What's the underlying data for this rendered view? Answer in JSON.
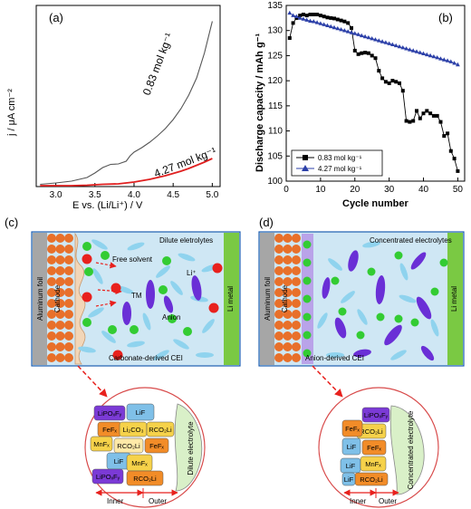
{
  "chart_data": [
    {
      "type": "line",
      "panel": "(a)",
      "xlabel": "E vs. (Li/Li⁺) / V",
      "ylabel": "j / μA cm⁻²",
      "xlim": [
        2.75,
        5.1
      ],
      "ylim": [
        0,
        40
      ],
      "x_ticks": [
        "3.0",
        "3.5",
        "4.0",
        "4.5",
        "5.0"
      ],
      "series": [
        {
          "name": "0.83 mol kg⁻¹",
          "color": "#555555",
          "x": [
            2.8,
            3.0,
            3.2,
            3.4,
            3.5,
            3.6,
            3.7,
            3.8,
            3.9,
            3.95,
            4.0,
            4.1,
            4.2,
            4.3,
            4.4,
            4.5,
            4.6,
            4.7,
            4.8,
            4.9,
            5.0
          ],
          "y": [
            0.5,
            0.8,
            1.2,
            2.0,
            3.0,
            4.2,
            4.9,
            5.0,
            5.6,
            6.8,
            7.6,
            8.6,
            9.8,
            11.2,
            12.8,
            14.8,
            17.2,
            20.2,
            24.0,
            29.5,
            36.5
          ]
        },
        {
          "name": "4.27 mol kg⁻¹",
          "color": "#e02020",
          "x": [
            2.8,
            3.0,
            3.2,
            3.4,
            3.6,
            3.8,
            3.9,
            4.0,
            4.1,
            4.2,
            4.3,
            4.4,
            4.5,
            4.6,
            4.7,
            4.8,
            4.9,
            5.0
          ],
          "y": [
            0.2,
            0.2,
            0.2,
            0.3,
            0.5,
            0.6,
            0.8,
            1.0,
            1.3,
            1.6,
            2.0,
            2.4,
            2.9,
            3.4,
            4.0,
            4.7,
            5.4,
            6.2
          ]
        }
      ]
    },
    {
      "type": "line",
      "panel": "(b)",
      "xlabel": "Cycle number",
      "ylabel": "Discharge capacity / mAh g⁻¹",
      "xlim": [
        0,
        52
      ],
      "ylim": [
        100,
        135
      ],
      "x_ticks": [
        0,
        10,
        20,
        30,
        40,
        50
      ],
      "y_ticks": [
        100,
        105,
        110,
        115,
        120,
        125,
        130,
        135
      ],
      "legend_position": "bottom-left",
      "series": [
        {
          "name": "0.83 mol kg⁻¹",
          "marker": "square",
          "color": "#000000",
          "x": [
            1,
            2,
            3,
            4,
            5,
            6,
            7,
            8,
            9,
            10,
            11,
            12,
            13,
            14,
            15,
            16,
            17,
            18,
            19,
            20,
            21,
            22,
            23,
            24,
            25,
            26,
            27,
            28,
            29,
            30,
            31,
            32,
            33,
            34,
            35,
            36,
            37,
            38,
            39,
            40,
            41,
            42,
            43,
            44,
            45,
            46,
            47,
            48,
            49,
            50
          ],
          "y": [
            128.5,
            131.5,
            132.5,
            133,
            133.2,
            133,
            133.2,
            133.2,
            133.2,
            133,
            132.8,
            132.6,
            132.5,
            132.4,
            132.2,
            132,
            131.8,
            131.5,
            130.5,
            126,
            125.3,
            125.5,
            125.6,
            125.5,
            125,
            124.5,
            122,
            120.5,
            119.8,
            119.5,
            120,
            119.8,
            119.5,
            118,
            112,
            111.8,
            112,
            114,
            112.5,
            113.5,
            114,
            113.5,
            113,
            113,
            111.8,
            109,
            109.5,
            106,
            104.5,
            102
          ]
        },
        {
          "name": "4.27 mol kg⁻¹",
          "marker": "triangle",
          "color": "#2b3fa8",
          "x": [
            1,
            2,
            3,
            4,
            5,
            6,
            7,
            8,
            9,
            10,
            11,
            12,
            13,
            14,
            15,
            16,
            17,
            18,
            19,
            20,
            21,
            22,
            23,
            24,
            25,
            26,
            27,
            28,
            29,
            30,
            31,
            32,
            33,
            34,
            35,
            36,
            37,
            38,
            39,
            40,
            41,
            42,
            43,
            44,
            45,
            46,
            47,
            48,
            49,
            50
          ],
          "y": [
            133.5,
            133,
            132.8,
            132.5,
            132.3,
            132.1,
            131.9,
            131.8,
            131.6,
            131.4,
            131.2,
            131,
            130.8,
            130.6,
            130.4,
            130.2,
            130,
            129.8,
            129.6,
            129.4,
            129.2,
            129,
            128.8,
            128.6,
            128.4,
            128.2,
            128,
            127.8,
            127.6,
            127.4,
            127.2,
            127,
            126.8,
            126.6,
            126.4,
            126.2,
            126,
            125.8,
            125.6,
            125.4,
            125.2,
            125,
            124.8,
            124.6,
            124.4,
            124.2,
            124,
            123.8,
            123.5,
            123.2
          ]
        }
      ]
    }
  ],
  "panels": {
    "a": "(a)",
    "b": "(b)",
    "c": "(c)",
    "d": "(d)"
  },
  "schematic_c": {
    "al_foil": "Aluminum foil",
    "cathode": "Cathode",
    "li_metal": "Li metal",
    "title": "Dilute eletrolytes",
    "free_solvent": "Free solvent",
    "tm": "TM",
    "li": "Li⁺",
    "anion": "Anion",
    "cei": "Carbonate-derived CEI"
  },
  "schematic_d": {
    "al_foil": "Aluminum foil",
    "cathode": "Cathode",
    "li_metal": "Li metal",
    "title": "Concentrated electrolytes",
    "cei": "Anion-derived CEI"
  },
  "zoom_c": {
    "labels": [
      "LiPOₓFᵧ",
      "LiF",
      "FeFₓ",
      "Li₂CO₃",
      "RCO₂Li",
      "MnFₓ",
      "RCO₂Li",
      "FeFₓ",
      "LiF",
      "LiPOₓFᵧ",
      "MnFₓ",
      "RCO₂Li"
    ],
    "electrolyte": "Dilute electrolyte",
    "inner": "Inner",
    "outer": "Outer"
  },
  "zoom_d": {
    "labels": [
      "LiPOₓFᵧ",
      "RCO₂Li",
      "FeFₓ",
      "LiF",
      "FeFₓ",
      "LiF",
      "MnFₓ",
      "RCO₂Li",
      "LiF"
    ],
    "electrolyte": "Concentrated electrolyte",
    "inner": "Inner",
    "outer": "Outer"
  },
  "colors": {
    "cathode_orange": "#e8702a",
    "electrolyte_bg": "#cfe7f4",
    "li_metal_green": "#7ac943",
    "al_foil_gray": "#a6a6a6",
    "anion_purple": "#6a2fd6",
    "solvent_blue": "#8fd3ee",
    "li_green": "#33cc33",
    "tm_red": "#e8211d"
  }
}
